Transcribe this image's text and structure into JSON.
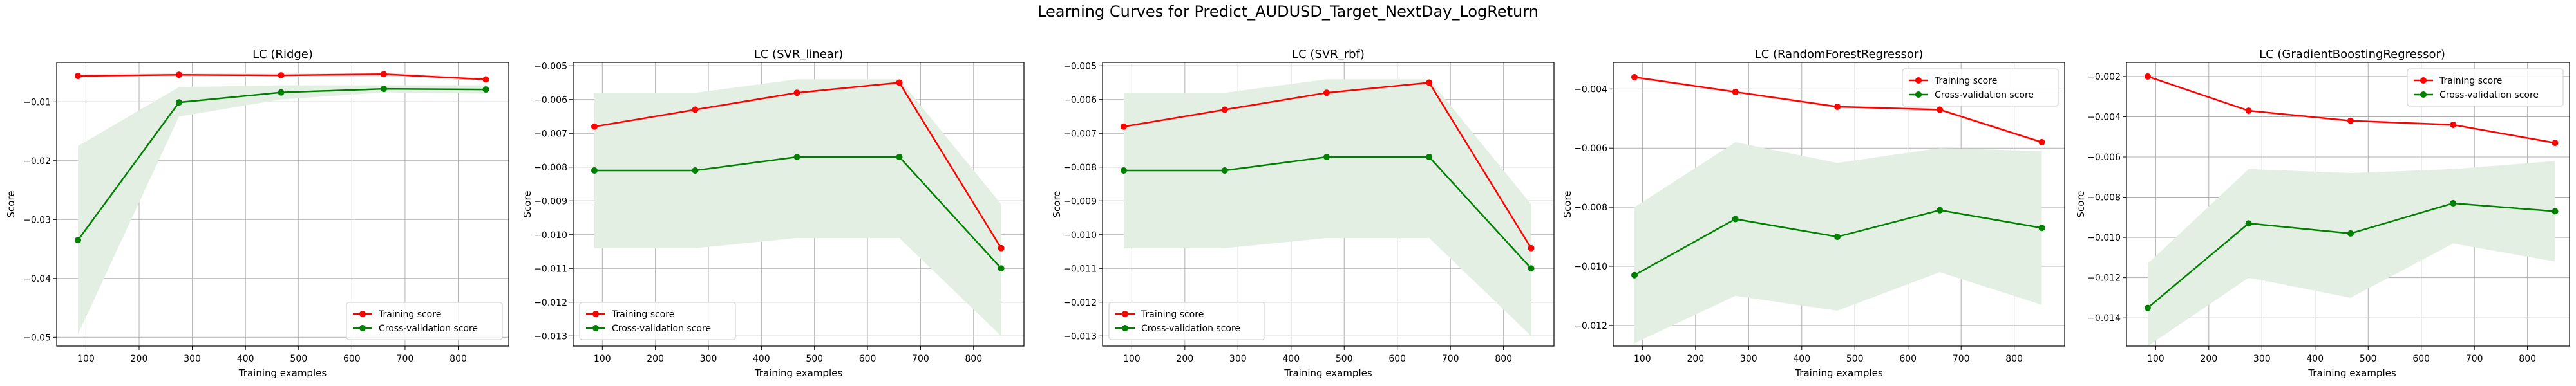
{
  "suptitle": "Learning Curves for Predict_AUDUSD_Target_NextDay_LogReturn",
  "colors": {
    "training": "#ff0000",
    "cv": "#008000",
    "cv_band": "#e3efe3",
    "train_band": "#fde7e7",
    "grid": "#b0b0b0"
  },
  "chart_data": [
    {
      "type": "line",
      "title": "LC (Ridge)",
      "xlabel": "Training examples",
      "ylabel": "Score",
      "xlim": [
        45,
        895
      ],
      "ylim": [
        -0.0515,
        -0.0033
      ],
      "xticks": [
        100,
        200,
        300,
        400,
        500,
        600,
        700,
        800
      ],
      "yticks": [
        -0.01,
        -0.02,
        -0.03,
        -0.04,
        -0.05
      ],
      "ytick_labels": [
        "−0.01",
        "−0.02",
        "−0.03",
        "−0.04",
        "−0.05"
      ],
      "grid": true,
      "legend": "lower right",
      "x": [
        85,
        275,
        467,
        660,
        852
      ],
      "series": [
        {
          "name": "Training score",
          "values": [
            -0.0056,
            -0.0054,
            -0.0055,
            -0.0053,
            -0.0062
          ],
          "std": [
            0.0003,
            0.0003,
            0.0003,
            0.0003,
            0.0003
          ]
        },
        {
          "name": "Cross-validation score",
          "values": [
            -0.0335,
            -0.0101,
            -0.0084,
            -0.0078,
            -0.0079
          ],
          "upper": [
            -0.0175,
            -0.0075,
            -0.0072,
            -0.0072,
            -0.0072
          ],
          "lower": [
            -0.0495,
            -0.0125,
            -0.0096,
            -0.0084,
            -0.0086
          ]
        }
      ]
    },
    {
      "type": "line",
      "title": "LC (SVR_linear)",
      "xlabel": "Training examples",
      "ylabel": "Score",
      "xlim": [
        45,
        895
      ],
      "ylim": [
        -0.0133,
        -0.0049
      ],
      "xticks": [
        100,
        200,
        300,
        400,
        500,
        600,
        700,
        800
      ],
      "yticks": [
        -0.005,
        -0.006,
        -0.007,
        -0.008,
        -0.009,
        -0.01,
        -0.011,
        -0.012,
        -0.013
      ],
      "ytick_labels": [
        "−0.005",
        "−0.006",
        "−0.007",
        "−0.008",
        "−0.009",
        "−0.010",
        "−0.011",
        "−0.012",
        "−0.013"
      ],
      "grid": true,
      "legend": "lower left",
      "x": [
        85,
        275,
        467,
        660,
        852
      ],
      "series": [
        {
          "name": "Training score",
          "values": [
            -0.0068,
            -0.0063,
            -0.0058,
            -0.0055,
            -0.0104
          ],
          "std": [
            5e-05,
            5e-05,
            5e-05,
            5e-05,
            5e-05
          ]
        },
        {
          "name": "Cross-validation score",
          "values": [
            -0.0081,
            -0.0081,
            -0.0077,
            -0.0077,
            -0.011
          ],
          "upper": [
            -0.0058,
            -0.0058,
            -0.0054,
            -0.0054,
            -0.0091
          ],
          "lower": [
            -0.0104,
            -0.0104,
            -0.0101,
            -0.0101,
            -0.013
          ]
        }
      ]
    },
    {
      "type": "line",
      "title": "LC (SVR_rbf)",
      "xlabel": "Training examples",
      "ylabel": "Score",
      "xlim": [
        45,
        895
      ],
      "ylim": [
        -0.0133,
        -0.0049
      ],
      "xticks": [
        100,
        200,
        300,
        400,
        500,
        600,
        700,
        800
      ],
      "yticks": [
        -0.005,
        -0.006,
        -0.007,
        -0.008,
        -0.009,
        -0.01,
        -0.011,
        -0.012,
        -0.013
      ],
      "ytick_labels": [
        "−0.005",
        "−0.006",
        "−0.007",
        "−0.008",
        "−0.009",
        "−0.010",
        "−0.011",
        "−0.012",
        "−0.013"
      ],
      "grid": true,
      "legend": "lower left",
      "x": [
        85,
        275,
        467,
        660,
        852
      ],
      "series": [
        {
          "name": "Training score",
          "values": [
            -0.0068,
            -0.0063,
            -0.0058,
            -0.0055,
            -0.0104
          ],
          "std": [
            5e-05,
            5e-05,
            5e-05,
            5e-05,
            5e-05
          ]
        },
        {
          "name": "Cross-validation score",
          "values": [
            -0.0081,
            -0.0081,
            -0.0077,
            -0.0077,
            -0.011
          ],
          "upper": [
            -0.0058,
            -0.0058,
            -0.0054,
            -0.0054,
            -0.0091
          ],
          "lower": [
            -0.0104,
            -0.0104,
            -0.0101,
            -0.0101,
            -0.013
          ]
        }
      ]
    },
    {
      "type": "line",
      "title": "LC (RandomForestRegressor)",
      "xlabel": "Training examples",
      "ylabel": "Score",
      "xlim": [
        45,
        895
      ],
      "ylim": [
        -0.0127,
        -0.0031
      ],
      "xticks": [
        100,
        200,
        300,
        400,
        500,
        600,
        700,
        800
      ],
      "yticks": [
        -0.004,
        -0.006,
        -0.008,
        -0.01,
        -0.012
      ],
      "ytick_labels": [
        "−0.004",
        "−0.006",
        "−0.008",
        "−0.010",
        "−0.012"
      ],
      "grid": true,
      "legend": "upper right",
      "x": [
        85,
        275,
        467,
        660,
        852
      ],
      "series": [
        {
          "name": "Training score",
          "values": [
            -0.0036,
            -0.0041,
            -0.0046,
            -0.0047,
            -0.0058
          ],
          "std": [
            5e-05,
            5e-05,
            5e-05,
            5e-05,
            5e-05
          ]
        },
        {
          "name": "Cross-validation score",
          "values": [
            -0.0103,
            -0.0084,
            -0.009,
            -0.0081,
            -0.0087
          ],
          "upper": [
            -0.008,
            -0.0058,
            -0.0065,
            -0.006,
            -0.0061
          ],
          "lower": [
            -0.0126,
            -0.011,
            -0.0115,
            -0.0102,
            -0.0113
          ]
        }
      ]
    },
    {
      "type": "line",
      "title": "LC (GradientBoostingRegressor)",
      "xlabel": "Training examples",
      "ylabel": "Score",
      "xlim": [
        45,
        895
      ],
      "ylim": [
        -0.0154,
        -0.0013
      ],
      "xticks": [
        100,
        200,
        300,
        400,
        500,
        600,
        700,
        800
      ],
      "yticks": [
        -0.002,
        -0.004,
        -0.006,
        -0.008,
        -0.01,
        -0.012,
        -0.014
      ],
      "ytick_labels": [
        "−0.002",
        "−0.004",
        "−0.006",
        "−0.008",
        "−0.010",
        "−0.012",
        "−0.014"
      ],
      "grid": true,
      "legend": "upper right",
      "x": [
        85,
        275,
        467,
        660,
        852
      ],
      "series": [
        {
          "name": "Training score",
          "values": [
            -0.002,
            -0.0037,
            -0.0042,
            -0.0044,
            -0.0053
          ],
          "std": [
            5e-05,
            5e-05,
            5e-05,
            5e-05,
            5e-05
          ]
        },
        {
          "name": "Cross-validation score",
          "values": [
            -0.0135,
            -0.0093,
            -0.0098,
            -0.0083,
            -0.0087
          ],
          "upper": [
            -0.0113,
            -0.0066,
            -0.0068,
            -0.0066,
            -0.0062
          ],
          "lower": [
            -0.0154,
            -0.012,
            -0.013,
            -0.0103,
            -0.0112
          ]
        }
      ]
    }
  ]
}
